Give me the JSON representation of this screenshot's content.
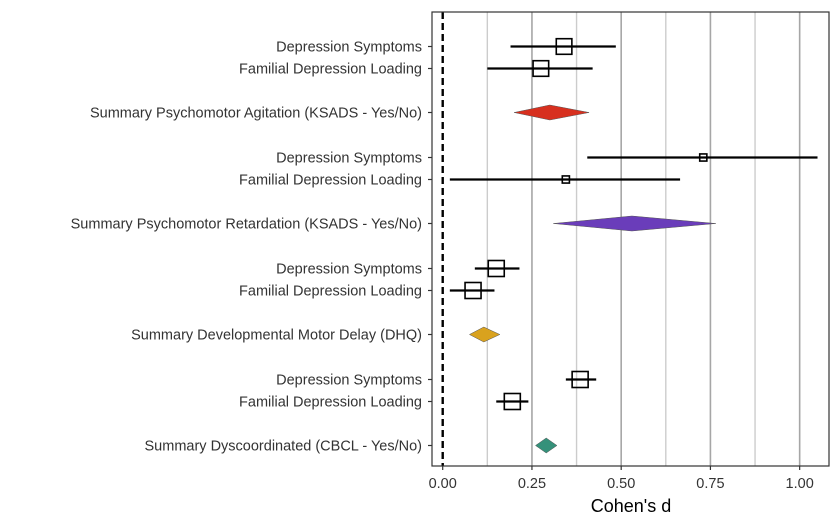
{
  "chart_data": {
    "type": "forest",
    "xlabel": "Cohen's d",
    "xlim": [
      -0.03,
      1.085
    ],
    "xticks": [
      0,
      0.25,
      0.5,
      0.75,
      1.0
    ],
    "xtick_labels": [
      "0.00",
      "0.25",
      "0.50",
      "0.75",
      "1.00"
    ],
    "minor_gridlines": [
      0.125,
      0.375,
      0.625,
      0.875
    ],
    "reference_line": 0,
    "groups": [
      {
        "summary": {
          "label": "Summary Psychomotor Agitation (KSADS - Yes/No)",
          "estimate": 0.3,
          "lower": 0.2,
          "upper": 0.41,
          "color": "#d7301f"
        },
        "studies": [
          {
            "label": "Depression Symptoms",
            "estimate": 0.34,
            "lower": 0.19,
            "upper": 0.485
          },
          {
            "label": "Familial Depression Loading",
            "estimate": 0.275,
            "lower": 0.125,
            "upper": 0.42
          }
        ]
      },
      {
        "summary": {
          "label": "Summary Psychomotor Retardation (KSADS - Yes/No)",
          "estimate": 0.53,
          "lower": 0.31,
          "upper": 0.765,
          "color": "#6a3dba"
        },
        "studies": [
          {
            "label": "Depression Symptoms",
            "estimate": 0.73,
            "lower": 0.405,
            "upper": 1.05
          },
          {
            "label": "Familial Depression Loading",
            "estimate": 0.345,
            "lower": 0.02,
            "upper": 0.665
          }
        ]
      },
      {
        "summary": {
          "label": "Summary Developmental Motor Delay (DHQ)",
          "estimate": 0.115,
          "lower": 0.075,
          "upper": 0.16,
          "color": "#d9a21e"
        },
        "studies": [
          {
            "label": "Depression Symptoms",
            "estimate": 0.15,
            "lower": 0.09,
            "upper": 0.215
          },
          {
            "label": "Familial Depression Loading",
            "estimate": 0.085,
            "lower": 0.02,
            "upper": 0.145
          }
        ]
      },
      {
        "summary": {
          "label": "Summary Dyscoordinated (CBCL - Yes/No)",
          "estimate": 0.29,
          "lower": 0.26,
          "upper": 0.32,
          "color": "#35917a"
        },
        "studies": [
          {
            "label": "Depression Symptoms",
            "estimate": 0.385,
            "lower": 0.345,
            "upper": 0.43
          },
          {
            "label": "Familial Depression Loading",
            "estimate": 0.195,
            "lower": 0.15,
            "upper": 0.24
          }
        ]
      }
    ]
  }
}
